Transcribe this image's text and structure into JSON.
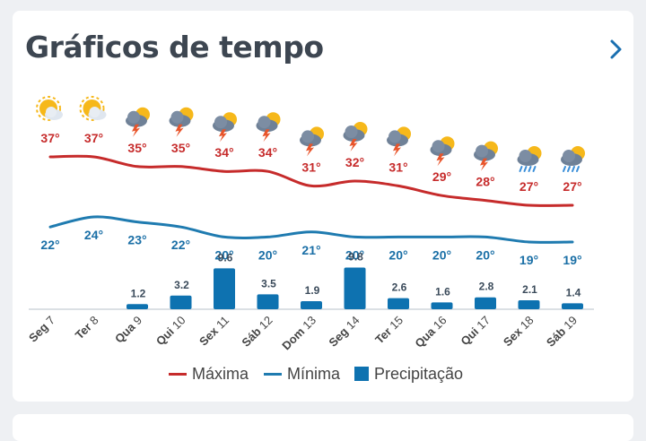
{
  "header": {
    "title": "Gráficos de tempo"
  },
  "colors": {
    "max": "#c62b2b",
    "min": "#1f7bb0",
    "precip": "#0e72b0",
    "label_max": "#c62b2b",
    "label_min": "#1a6fa6",
    "precip_label": "#3a4a5a",
    "axis_text": "#444444"
  },
  "icons": [
    "sun-cloud-icon",
    "sun-cloud-icon",
    "storm-sun-icon",
    "storm-sun-icon",
    "storm-sun-icon",
    "storm-sun-icon",
    "storm-sun-icon",
    "storm-sun-icon",
    "storm-sun-icon",
    "storm-sun-icon",
    "storm-sun-icon",
    "rain-sun-icon",
    "rain-sun-icon"
  ],
  "chart_data": {
    "type": "line+bar",
    "categories": [
      {
        "day": "Seg",
        "date": "7"
      },
      {
        "day": "Ter",
        "date": "8"
      },
      {
        "day": "Qua",
        "date": "9"
      },
      {
        "day": "Qui",
        "date": "10"
      },
      {
        "day": "Sex",
        "date": "11"
      },
      {
        "day": "Sáb",
        "date": "12"
      },
      {
        "day": "Dom",
        "date": "13"
      },
      {
        "day": "Seg",
        "date": "14"
      },
      {
        "day": "Ter",
        "date": "15"
      },
      {
        "day": "Qua",
        "date": "16"
      },
      {
        "day": "Qui",
        "date": "17"
      },
      {
        "day": "Sex",
        "date": "18"
      },
      {
        "day": "Sáb",
        "date": "19"
      }
    ],
    "series": [
      {
        "name": "Máxima",
        "unit": "°",
        "values": [
          37,
          37,
          35,
          35,
          34,
          34,
          31,
          32,
          31,
          29,
          28,
          27,
          27
        ]
      },
      {
        "name": "Mínima",
        "unit": "°",
        "values": [
          22,
          24,
          23,
          22,
          20,
          20,
          21,
          20,
          20,
          20,
          20,
          19,
          19
        ]
      },
      {
        "name": "Precipitação",
        "values": [
          0,
          0,
          1.2,
          3.2,
          9.6,
          3.5,
          1.9,
          9.8,
          2.6,
          1.6,
          2.8,
          2.1,
          1.4
        ],
        "labels": [
          "",
          "",
          "1.2",
          "3.2",
          "9.6",
          "3.5",
          "1.9",
          "9.8",
          "2.6",
          "1.6",
          "2.8",
          "2.1",
          "1.4"
        ]
      }
    ],
    "legend": [
      {
        "name": "Máxima",
        "kind": "line"
      },
      {
        "name": "Mínima",
        "kind": "line"
      },
      {
        "name": "Precipitação",
        "kind": "box"
      }
    ],
    "legend_position": "bottom-center",
    "grid": false
  }
}
